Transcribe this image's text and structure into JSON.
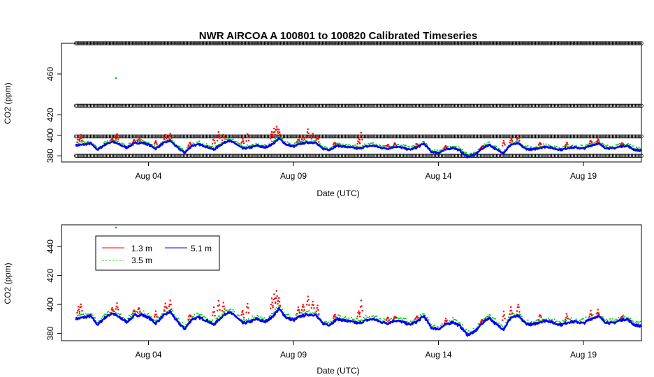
{
  "chart_data": {
    "type": "scatter",
    "title": "NWR   AIRCOA  A    100801  to  100820   Calibrated Timeseries",
    "x_unit": "date",
    "x_range": [
      "2010-08-01",
      "2010-08-21"
    ],
    "x_ticks": [
      {
        "date": "2010-08-04",
        "label": "Aug 04"
      },
      {
        "date": "2010-08-09",
        "label": "Aug 09"
      },
      {
        "date": "2010-08-14",
        "label": "Aug 14"
      },
      {
        "date": "2010-08-19",
        "label": "Aug 19"
      }
    ],
    "panels": [
      {
        "xlabel": "Date (UTC)",
        "ylabel": "CO2 (ppm)",
        "ylim": [
          374,
          490
        ],
        "yticks": [
          380,
          400,
          420,
          460
        ],
        "ytick_labels": [
          "380",
          "400",
          "420",
          "460"
        ],
        "calibration_levels": [
          380,
          399,
          429,
          490
        ],
        "outlier_points": [
          {
            "date": "2010-08-02T21:00",
            "value": 456,
            "series": "3.5 m"
          }
        ]
      },
      {
        "xlabel": "Date (UTC)",
        "ylabel": "CO2 (ppm)",
        "ylim": [
          375,
          455
        ],
        "yticks": [
          380,
          400,
          420,
          440
        ],
        "ytick_labels": [
          "380",
          "400",
          "420",
          "440"
        ],
        "outlier_points": [
          {
            "date": "2010-08-02T21:00",
            "value": 456,
            "series": "3.5 m"
          }
        ]
      }
    ],
    "legend": {
      "placement": "top-left",
      "entries": [
        {
          "label": "1.3 m",
          "color": "#ff0000"
        },
        {
          "label": "5.1 m",
          "color": "#0000ff"
        },
        {
          "label": "3.5 m",
          "color": "#00cc00"
        }
      ]
    },
    "series": [
      {
        "name": "5.1 m",
        "color": "#0000ff"
      },
      {
        "name": "3.5 m",
        "color": "#00cc00"
      },
      {
        "name": "1.3 m",
        "color": "#ff0000"
      }
    ],
    "baseline": [
      [
        "2010-08-01T12:00",
        390
      ],
      [
        "2010-08-01T18:00",
        391
      ],
      [
        "2010-08-02T00:00",
        392
      ],
      [
        "2010-08-02T06:00",
        386
      ],
      [
        "2010-08-02T12:00",
        391
      ],
      [
        "2010-08-02T18:00",
        394
      ],
      [
        "2010-08-03T00:00",
        391
      ],
      [
        "2010-08-03T06:00",
        388
      ],
      [
        "2010-08-03T12:00",
        392
      ],
      [
        "2010-08-03T18:00",
        393
      ],
      [
        "2010-08-04T00:00",
        391
      ],
      [
        "2010-08-04T06:00",
        387
      ],
      [
        "2010-08-04T12:00",
        392
      ],
      [
        "2010-08-04T18:00",
        395
      ],
      [
        "2010-08-05T00:00",
        388
      ],
      [
        "2010-08-05T06:00",
        383
      ],
      [
        "2010-08-05T12:00",
        390
      ],
      [
        "2010-08-05T18:00",
        391
      ],
      [
        "2010-08-06T00:00",
        389
      ],
      [
        "2010-08-06T06:00",
        386
      ],
      [
        "2010-08-06T12:00",
        391
      ],
      [
        "2010-08-06T18:00",
        395
      ],
      [
        "2010-08-07T00:00",
        392
      ],
      [
        "2010-08-07T06:00",
        387
      ],
      [
        "2010-08-07T12:00",
        388
      ],
      [
        "2010-08-07T18:00",
        390
      ],
      [
        "2010-08-08T00:00",
        388
      ],
      [
        "2010-08-08T06:00",
        391
      ],
      [
        "2010-08-08T12:00",
        397
      ],
      [
        "2010-08-08T18:00",
        391
      ],
      [
        "2010-08-09T00:00",
        389
      ],
      [
        "2010-08-09T06:00",
        392
      ],
      [
        "2010-08-09T12:00",
        393
      ],
      [
        "2010-08-09T18:00",
        393
      ],
      [
        "2010-08-10T00:00",
        387
      ],
      [
        "2010-08-10T06:00",
        386
      ],
      [
        "2010-08-10T12:00",
        390
      ],
      [
        "2010-08-10T18:00",
        389
      ],
      [
        "2010-08-11T00:00",
        388
      ],
      [
        "2010-08-11T06:00",
        387
      ],
      [
        "2010-08-11T12:00",
        389
      ],
      [
        "2010-08-11T18:00",
        390
      ],
      [
        "2010-08-12T00:00",
        388
      ],
      [
        "2010-08-12T06:00",
        387
      ],
      [
        "2010-08-12T12:00",
        389
      ],
      [
        "2010-08-12T18:00",
        388
      ],
      [
        "2010-08-13T00:00",
        386
      ],
      [
        "2010-08-13T06:00",
        388
      ],
      [
        "2010-08-13T12:00",
        392
      ],
      [
        "2010-08-13T18:00",
        384
      ],
      [
        "2010-08-14T00:00",
        383
      ],
      [
        "2010-08-14T06:00",
        386
      ],
      [
        "2010-08-14T12:00",
        388
      ],
      [
        "2010-08-14T18:00",
        385
      ],
      [
        "2010-08-15T00:00",
        379
      ],
      [
        "2010-08-15T06:00",
        381
      ],
      [
        "2010-08-15T12:00",
        387
      ],
      [
        "2010-08-15T18:00",
        391
      ],
      [
        "2010-08-16T00:00",
        386
      ],
      [
        "2010-08-16T06:00",
        383
      ],
      [
        "2010-08-16T12:00",
        391
      ],
      [
        "2010-08-16T18:00",
        392
      ],
      [
        "2010-08-17T00:00",
        387
      ],
      [
        "2010-08-17T06:00",
        386
      ],
      [
        "2010-08-17T12:00",
        388
      ],
      [
        "2010-08-17T18:00",
        389
      ],
      [
        "2010-08-18T00:00",
        387
      ],
      [
        "2010-08-18T06:00",
        386
      ],
      [
        "2010-08-18T12:00",
        388
      ],
      [
        "2010-08-18T18:00",
        388
      ],
      [
        "2010-08-19T00:00",
        387
      ],
      [
        "2010-08-19T06:00",
        390
      ],
      [
        "2010-08-19T12:00",
        392
      ],
      [
        "2010-08-19T18:00",
        388
      ],
      [
        "2010-08-20T00:00",
        387
      ],
      [
        "2010-08-20T06:00",
        389
      ],
      [
        "2010-08-20T12:00",
        390
      ],
      [
        "2010-08-20T18:00",
        386
      ],
      [
        "2010-08-21T00:00",
        385
      ]
    ],
    "spikes_1_3m": [
      [
        "2010-08-01T14:00",
        398
      ],
      [
        "2010-08-01T16:00",
        400
      ],
      [
        "2010-08-02T18:00",
        397
      ],
      [
        "2010-08-02T22:00",
        401
      ],
      [
        "2010-08-03T12:00",
        396
      ],
      [
        "2010-08-03T16:00",
        398
      ],
      [
        "2010-08-04T06:00",
        395
      ],
      [
        "2010-08-04T14:00",
        400
      ],
      [
        "2010-08-04T18:00",
        402
      ],
      [
        "2010-08-05T10:00",
        393
      ],
      [
        "2010-08-06T06:00",
        398
      ],
      [
        "2010-08-06T10:00",
        403
      ],
      [
        "2010-08-06T14:00",
        401
      ],
      [
        "2010-08-07T06:00",
        396
      ],
      [
        "2010-08-07T10:00",
        401
      ],
      [
        "2010-08-08T06:00",
        404
      ],
      [
        "2010-08-08T08:00",
        407
      ],
      [
        "2010-08-08T10:00",
        409
      ],
      [
        "2010-08-08T12:00",
        405
      ],
      [
        "2010-08-09T04:00",
        398
      ],
      [
        "2010-08-09T08:00",
        400
      ],
      [
        "2010-08-09T12:00",
        406
      ],
      [
        "2010-08-09T16:00",
        402
      ],
      [
        "2010-08-09T20:00",
        399
      ],
      [
        "2010-08-10T10:00",
        393
      ],
      [
        "2010-08-11T06:00",
        396
      ],
      [
        "2010-08-11T08:00",
        403
      ],
      [
        "2010-08-12T06:00",
        391
      ],
      [
        "2010-08-12T12:00",
        392
      ],
      [
        "2010-08-13T06:00",
        392
      ],
      [
        "2010-08-14T06:00",
        390
      ],
      [
        "2010-08-15T12:00",
        390
      ],
      [
        "2010-08-16T06:00",
        395
      ],
      [
        "2010-08-16T12:00",
        398
      ],
      [
        "2010-08-16T18:00",
        400
      ],
      [
        "2010-08-17T12:00",
        393
      ],
      [
        "2010-08-18T10:00",
        393
      ],
      [
        "2010-08-19T06:00",
        395
      ],
      [
        "2010-08-19T12:00",
        396
      ],
      [
        "2010-08-20T08:00",
        392
      ]
    ]
  }
}
